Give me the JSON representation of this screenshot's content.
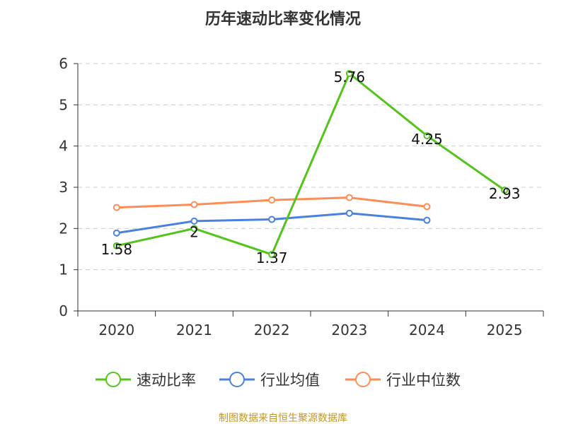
{
  "chart_data": {
    "type": "line",
    "title": "历年速动比率变化情况",
    "categories": [
      "2020",
      "2021",
      "2022",
      "2023",
      "2024",
      "2025"
    ],
    "ylim": [
      0,
      6
    ],
    "yticks": [
      "0",
      "1",
      "2",
      "3",
      "4",
      "5",
      "6"
    ],
    "grid": true,
    "legend_position": "bottom",
    "series": [
      {
        "name": "速动比率",
        "color": "#52c41a",
        "values": [
          1.58,
          2,
          1.37,
          5.76,
          4.25,
          2.93
        ],
        "labels": [
          "1.58",
          "2",
          "1.37",
          "5.76",
          "4.25",
          "2.93"
        ]
      },
      {
        "name": "行业均值",
        "color": "#4a80e0",
        "values": [
          1.89,
          2.18,
          2.22,
          2.37,
          2.2,
          null
        ]
      },
      {
        "name": "行业中位数",
        "color": "#ff8c55",
        "values": [
          2.51,
          2.58,
          2.69,
          2.75,
          2.53,
          null
        ]
      }
    ],
    "source": "制图数据来自恒生聚源数据库"
  }
}
